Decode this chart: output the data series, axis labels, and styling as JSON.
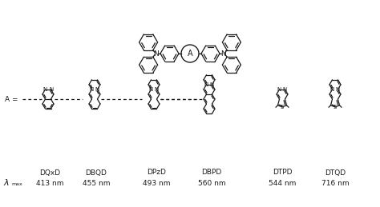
{
  "background_color": "#ffffff",
  "line_color": "#1a1a1a",
  "line_width": 0.9,
  "font_size": 6.5,
  "compounds": [
    "DQxD",
    "DBQD",
    "DPzD",
    "DBPD",
    "DTPD",
    "DTQD"
  ],
  "wavelengths": [
    "413 nm",
    "455 nm",
    "493 nm",
    "560 nm",
    "544 nm",
    "716 nm"
  ],
  "lambda_symbol": "λ",
  "max_sub": "max"
}
